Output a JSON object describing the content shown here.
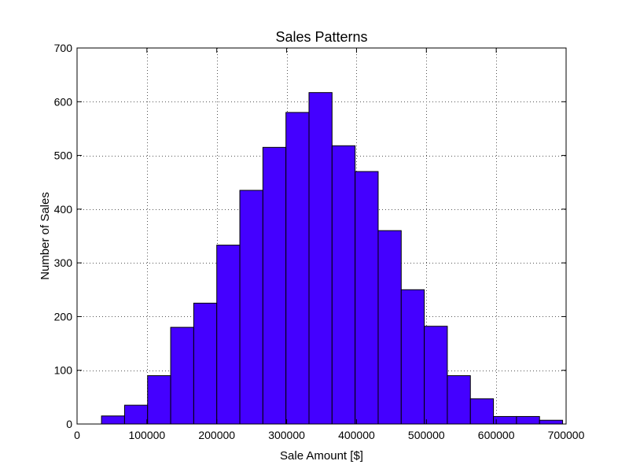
{
  "chart_data": {
    "type": "bar",
    "subtype": "histogram",
    "title": "Sales Patterns",
    "xlabel": "Sale Amount [$]",
    "ylabel": "Number of Sales",
    "xlim": [
      0,
      700000
    ],
    "ylim": [
      0,
      700
    ],
    "grid": true,
    "grid_style": "dotted",
    "bar_color": "#4400ff",
    "bar_edge_color": "#000000",
    "x_ticks": [
      0,
      100000,
      200000,
      300000,
      400000,
      500000,
      600000,
      700000
    ],
    "x_tick_labels": [
      "0",
      "100000",
      "200000",
      "300000",
      "400000",
      "500000",
      "600000",
      "700000"
    ],
    "y_ticks": [
      0,
      100,
      200,
      300,
      400,
      500,
      600,
      700
    ],
    "y_tick_labels": [
      "0",
      "100",
      "200",
      "300",
      "400",
      "500",
      "600",
      "700"
    ],
    "bins": [
      {
        "x0": 35000,
        "x1": 68000,
        "value": 15
      },
      {
        "x0": 68000,
        "x1": 101000,
        "value": 35
      },
      {
        "x0": 101000,
        "x1": 134000,
        "value": 90
      },
      {
        "x0": 134000,
        "x1": 167000,
        "value": 180
      },
      {
        "x0": 167000,
        "x1": 200000,
        "value": 225
      },
      {
        "x0": 200000,
        "x1": 233000,
        "value": 333
      },
      {
        "x0": 233000,
        "x1": 266000,
        "value": 435
      },
      {
        "x0": 266000,
        "x1": 299000,
        "value": 515
      },
      {
        "x0": 299000,
        "x1": 332000,
        "value": 580
      },
      {
        "x0": 332000,
        "x1": 365000,
        "value": 617
      },
      {
        "x0": 365000,
        "x1": 398000,
        "value": 518
      },
      {
        "x0": 398000,
        "x1": 431000,
        "value": 470
      },
      {
        "x0": 431000,
        "x1": 464000,
        "value": 360
      },
      {
        "x0": 464000,
        "x1": 497000,
        "value": 250
      },
      {
        "x0": 497000,
        "x1": 530000,
        "value": 182
      },
      {
        "x0": 530000,
        "x1": 563000,
        "value": 90
      },
      {
        "x0": 563000,
        "x1": 596000,
        "value": 47
      },
      {
        "x0": 596000,
        "x1": 629000,
        "value": 14
      },
      {
        "x0": 629000,
        "x1": 662000,
        "value": 14
      },
      {
        "x0": 662000,
        "x1": 695000,
        "value": 7
      }
    ]
  }
}
